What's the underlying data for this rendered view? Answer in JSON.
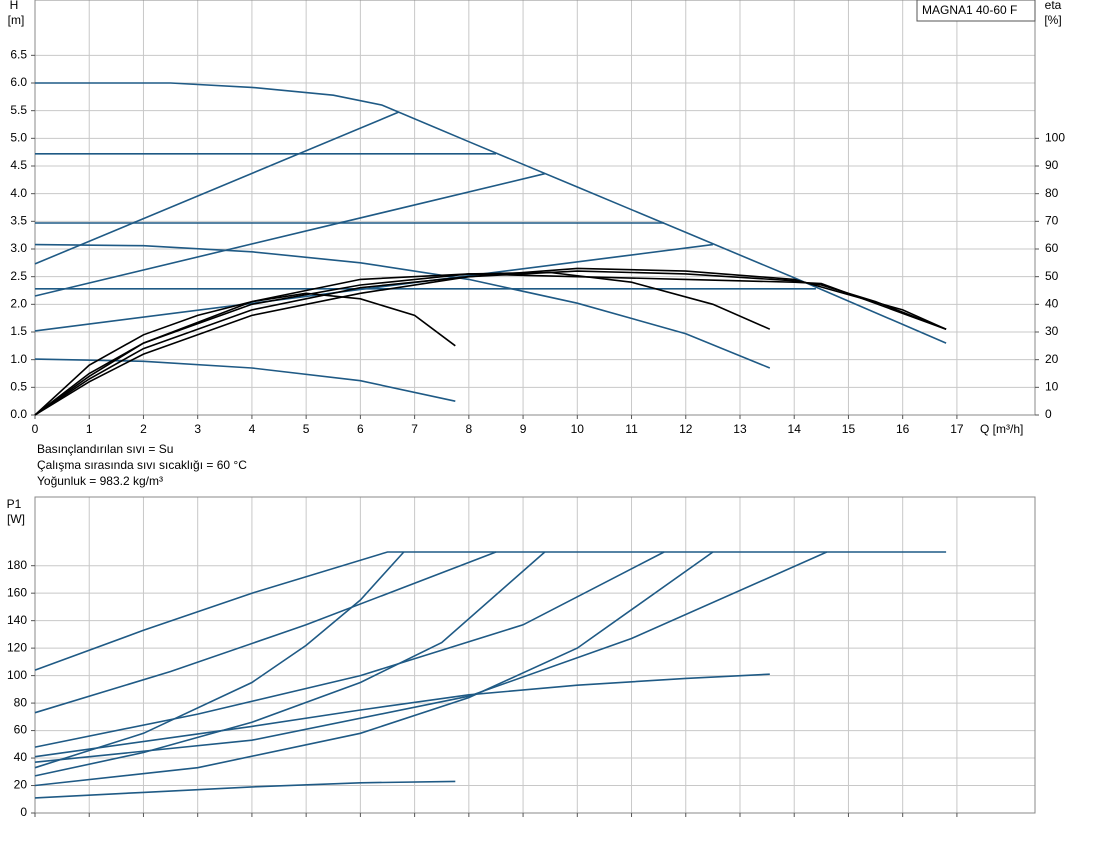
{
  "chart_data": [
    {
      "type": "line",
      "ylabel": "H",
      "yunit": "[m]",
      "y2label": "eta",
      "y2unit": "[%]",
      "xlabel": "Q [m³/h]",
      "label": "MAGNA1 40-60 F",
      "notes": [
        "Basınçlandırılan sıvı = Su",
        "Çalışma sırasında sıvı sıcaklığı = 60 °C",
        "Yoğunluk = 983.2 kg/m³"
      ],
      "xlim": [
        0,
        18.44
      ],
      "xticks": [
        0,
        1,
        2,
        3,
        4,
        5,
        6,
        7,
        8,
        9,
        10,
        11,
        12,
        13,
        14,
        15,
        16,
        17
      ],
      "ylim": [
        0,
        7.5
      ],
      "yticks": [
        {
          "value": 0,
          "label": "0.0"
        },
        0.5,
        {
          "value": 1,
          "label": "1.0"
        },
        1.5,
        {
          "value": 2,
          "label": "2.0"
        },
        2.5,
        {
          "value": 3,
          "label": "3.0"
        },
        3.5,
        {
          "value": 4,
          "label": "4.0"
        },
        4.5,
        {
          "value": 5,
          "label": "5.0"
        },
        5.5,
        {
          "value": 6,
          "label": "6.0"
        },
        6.5
      ],
      "y2lim": [
        0,
        150
      ],
      "y2ticks": [
        0,
        10,
        20,
        30,
        40,
        50,
        60,
        70,
        80,
        90,
        100
      ],
      "grid": true,
      "series": [
        {
          "color": "#1f5a85",
          "x": [
            0,
            2.5,
            4,
            5.5,
            6.4,
            8,
            10,
            12,
            14,
            16.8
          ],
          "values": [
            6.0,
            6.0,
            5.92,
            5.78,
            5.6,
            4.94,
            4.12,
            3.3,
            2.48,
            1.3
          ]
        },
        {
          "color": "#1f5a85",
          "x": [
            0,
            8.5
          ],
          "values": [
            4.72,
            4.72
          ]
        },
        {
          "color": "#1f5a85",
          "x": [
            0,
            11.6
          ],
          "values": [
            3.47,
            3.47
          ]
        },
        {
          "color": "#1f5a85",
          "x": [
            0,
            14.4
          ],
          "values": [
            2.28,
            2.28
          ]
        },
        {
          "color": "#1f5a85",
          "x": [
            0,
            6.7
          ],
          "values": [
            2.73,
            5.47
          ]
        },
        {
          "color": "#1f5a85",
          "x": [
            0,
            9.4
          ],
          "values": [
            2.15,
            4.36
          ]
        },
        {
          "color": "#1f5a85",
          "x": [
            0,
            12.5
          ],
          "values": [
            1.52,
            3.08
          ]
        },
        {
          "color": "#1f5a85",
          "x": [
            0,
            2,
            4,
            6,
            8,
            10,
            12,
            13.55
          ],
          "values": [
            3.08,
            3.06,
            2.95,
            2.75,
            2.45,
            2.02,
            1.47,
            0.85
          ]
        },
        {
          "color": "#1f5a85",
          "x": [
            0,
            2,
            4,
            6,
            7.75
          ],
          "values": [
            1.01,
            0.97,
            0.85,
            0.62,
            0.25
          ]
        },
        {
          "color": "#000000",
          "axis": "y2",
          "x": [
            0,
            1,
            2,
            3,
            4,
            5,
            6,
            7,
            7.75
          ],
          "values": [
            0,
            18,
            29,
            36,
            41,
            44,
            42,
            36,
            25
          ]
        },
        {
          "color": "#000000",
          "axis": "y2",
          "x": [
            0,
            1,
            2,
            4,
            6,
            8,
            9.5,
            11,
            12.5,
            13.55
          ],
          "values": [
            0,
            15,
            26,
            40,
            47,
            51,
            51.5,
            48,
            40,
            31
          ]
        },
        {
          "color": "#000000",
          "axis": "y2",
          "x": [
            0,
            1,
            2,
            4,
            6,
            8,
            10,
            12,
            14,
            14.5,
            15.5,
            16.8
          ],
          "values": [
            0,
            13,
            24,
            38,
            46,
            50,
            52,
            51,
            48.5,
            47,
            41,
            31
          ]
        },
        {
          "color": "#000000",
          "axis": "y2",
          "x": [
            0,
            1,
            2,
            4,
            6,
            8,
            10,
            12,
            14,
            16,
            16.8
          ],
          "values": [
            0,
            12,
            22,
            36,
            44,
            50,
            53,
            52,
            49,
            38,
            31
          ]
        },
        {
          "color": "#000000",
          "axis": "y2",
          "x": [
            0,
            1,
            2,
            4,
            6,
            8,
            10,
            12,
            14,
            14.5,
            16.8
          ],
          "values": [
            0,
            14,
            26,
            41,
            49,
            51,
            50,
            49,
            48,
            47.5,
            31
          ]
        }
      ]
    },
    {
      "type": "line",
      "ylabel": "P1",
      "yunit": "[W]",
      "xlim": [
        0,
        18.44
      ],
      "xticks": [
        0,
        1,
        2,
        3,
        4,
        5,
        6,
        7,
        8,
        9,
        10,
        11,
        12,
        13,
        14,
        15,
        16,
        17
      ],
      "ylim": [
        0,
        230
      ],
      "yticks": [
        0,
        20,
        40,
        60,
        80,
        100,
        120,
        140,
        160,
        180
      ],
      "grid": true,
      "series": [
        {
          "color": "#1f5a85",
          "x": [
            0,
            2,
            4,
            6.5,
            16.8
          ],
          "values": [
            104,
            133,
            160,
            190,
            190
          ]
        },
        {
          "color": "#1f5a85",
          "x": [
            0,
            2,
            4,
            5,
            6,
            6.8
          ],
          "values": [
            33,
            58,
            95,
            122,
            155,
            190
          ]
        },
        {
          "color": "#1f5a85",
          "x": [
            0,
            2.5,
            5,
            8.5
          ],
          "values": [
            73,
            103,
            137,
            190
          ]
        },
        {
          "color": "#1f5a85",
          "x": [
            0,
            2,
            4,
            6,
            7.5,
            9.4
          ],
          "values": [
            27,
            44,
            66,
            95,
            124,
            190
          ]
        },
        {
          "color": "#1f5a85",
          "x": [
            0,
            3,
            6,
            9,
            11.6
          ],
          "values": [
            48,
            72,
            100,
            137,
            190
          ]
        },
        {
          "color": "#1f5a85",
          "x": [
            0,
            3,
            6,
            8,
            10,
            12.5
          ],
          "values": [
            20,
            33,
            58,
            84,
            120,
            190
          ]
        },
        {
          "color": "#1f5a85",
          "x": [
            0,
            4,
            8,
            11,
            14.6
          ],
          "values": [
            37,
            53,
            85,
            127,
            190
          ]
        },
        {
          "color": "#1f5a85",
          "x": [
            0,
            4,
            6,
            8,
            10,
            12,
            13.55
          ],
          "values": [
            41,
            63,
            75,
            86,
            93,
            98,
            101
          ]
        },
        {
          "color": "#1f5a85",
          "x": [
            0,
            2,
            4,
            6,
            7.75
          ],
          "values": [
            11,
            15,
            19,
            22,
            23
          ]
        }
      ]
    }
  ]
}
